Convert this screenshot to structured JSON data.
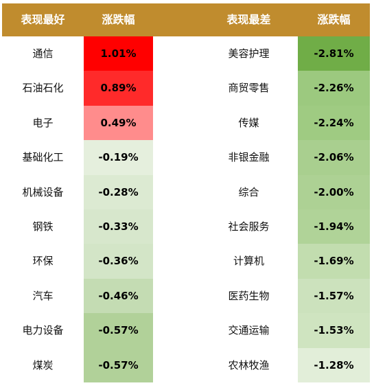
{
  "header": {
    "best_label": "表现最好",
    "best_change_label": "涨跌幅",
    "worst_label": "表现最差",
    "worst_change_label": "涨跌幅"
  },
  "colors": {
    "header_bg": "#C08C2E",
    "header_text": "#FFFFFF"
  },
  "best": [
    {
      "name": "通信",
      "change": "1.01%",
      "color": "#FF0000"
    },
    {
      "name": "石油石化",
      "change": "0.89%",
      "color": "#FF2A2A"
    },
    {
      "name": "电子",
      "change": "0.49%",
      "color": "#FF8C8C"
    },
    {
      "name": "基础化工",
      "change": "-0.19%",
      "color": "#E5EFDD"
    },
    {
      "name": "机械设备",
      "change": "-0.28%",
      "color": "#DCEAD2"
    },
    {
      "name": "钢铁",
      "change": "-0.33%",
      "color": "#D7E7CC"
    },
    {
      "name": "环保",
      "change": "-0.36%",
      "color": "#D3E5C7"
    },
    {
      "name": "汽车",
      "change": "-0.46%",
      "color": "#C4DCB3"
    },
    {
      "name": "电力设备",
      "change": "-0.57%",
      "color": "#B1D199"
    },
    {
      "name": "煤炭",
      "change": "-0.57%",
      "color": "#B1D199"
    }
  ],
  "worst": [
    {
      "name": "美容护理",
      "change": "-2.81%",
      "color": "#70AD47"
    },
    {
      "name": "商贸零售",
      "change": "-2.26%",
      "color": "#9CC97F"
    },
    {
      "name": "传媒",
      "change": "-2.24%",
      "color": "#9FCB82"
    },
    {
      "name": "非银金融",
      "change": "-2.06%",
      "color": "#A9CF8F"
    },
    {
      "name": "综合",
      "change": "-2.00%",
      "color": "#ADD194"
    },
    {
      "name": "社会服务",
      "change": "-1.94%",
      "color": "#B0D398"
    },
    {
      "name": "计算机",
      "change": "-1.69%",
      "color": "#C2DDAF"
    },
    {
      "name": "医药生物",
      "change": "-1.57%",
      "color": "#CCE2BD"
    },
    {
      "name": "交通运输",
      "change": "-1.53%",
      "color": "#CFE4C0"
    },
    {
      "name": "农林牧渔",
      "change": "-1.28%",
      "color": "#E2EED9"
    }
  ]
}
